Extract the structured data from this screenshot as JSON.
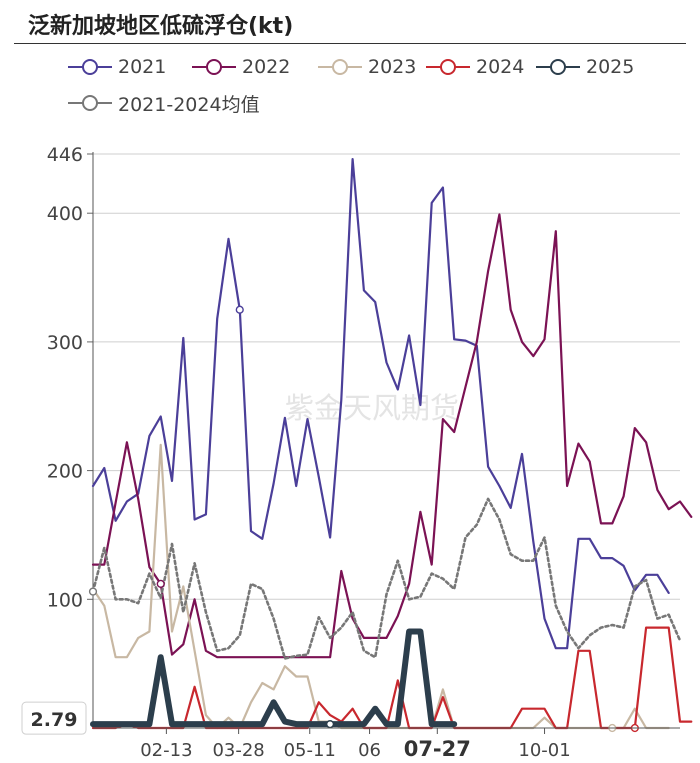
{
  "title": "泛新加坡地区低硫浮仓(kt)",
  "watermark": "紫金天风期货",
  "chart_data": {
    "type": "line",
    "title": "泛新加坡地区低硫浮仓(kt)",
    "ylim": [
      0,
      446
    ],
    "y_ticks": [
      100,
      200,
      300,
      400,
      446
    ],
    "x_range": [
      0,
      52
    ],
    "x_ticks": [
      {
        "label": "02-13",
        "x": 6.5
      },
      {
        "label": "03-28",
        "x": 12.9
      },
      {
        "label": "05-11",
        "x": 19.2
      },
      {
        "label": "06",
        "x": 24.5
      },
      {
        "label": "07-27",
        "x": 30.5
      },
      {
        "label": "10-01",
        "x": 40.0
      }
    ],
    "highlight_tick": "07-27",
    "current_value_label": "2.79",
    "series": [
      {
        "name": "2021",
        "color": "#4b3f99",
        "width": 2.2,
        "dash": "",
        "marker": 13,
        "values": [
          188,
          202,
          161,
          176,
          182,
          227,
          242,
          192,
          303,
          162,
          166,
          318,
          380,
          325,
          153,
          147,
          190,
          241,
          188,
          240,
          195,
          148,
          255,
          442,
          340,
          331,
          284,
          263,
          305,
          251,
          408,
          420,
          302,
          301,
          297,
          203,
          188,
          171,
          213,
          145,
          85,
          62,
          62,
          147,
          147,
          132,
          132,
          126,
          107,
          119,
          119,
          105
        ]
      },
      {
        "name": "2022",
        "color": "#7b1254",
        "width": 2.2,
        "dash": "",
        "marker": 6,
        "values": [
          127,
          127,
          175,
          222,
          178,
          125,
          112,
          57,
          65,
          100,
          60,
          55,
          55,
          55,
          55,
          55,
          55,
          55,
          55,
          55,
          55,
          55,
          122,
          85,
          70,
          70,
          70,
          87,
          112,
          168,
          127,
          240,
          230,
          265,
          300,
          355,
          399,
          325,
          300,
          289,
          302,
          386,
          188,
          221,
          207,
          159,
          159,
          180,
          233,
          222,
          185,
          170,
          176,
          164
        ]
      },
      {
        "name": "2023",
        "color": "#c8b8a3",
        "width": 2.2,
        "dash": "",
        "marker": 46,
        "values": [
          108,
          95,
          55,
          55,
          70,
          75,
          220,
          75,
          110,
          60,
          10,
          0,
          8,
          0,
          20,
          35,
          30,
          48,
          40,
          40,
          5,
          5,
          0,
          0,
          0,
          0,
          0,
          0,
          0,
          0,
          0,
          30,
          0,
          0,
          0,
          0,
          0,
          0,
          0,
          0,
          8,
          0,
          0,
          0,
          0,
          0,
          0,
          0,
          15,
          0,
          0,
          0
        ]
      },
      {
        "name": "2024",
        "color": "#c8282e",
        "width": 2.2,
        "dash": "",
        "marker": 48,
        "values": [
          0,
          0,
          0,
          3,
          0,
          0,
          0,
          0,
          0,
          32,
          0,
          0,
          0,
          0,
          0,
          0,
          0,
          0,
          0,
          0,
          20,
          10,
          5,
          15,
          0,
          0,
          0,
          37,
          0,
          0,
          0,
          24,
          0,
          0,
          0,
          0,
          0,
          0,
          15,
          15,
          15,
          0,
          0,
          60,
          60,
          0,
          0,
          0,
          0,
          78,
          78,
          78,
          5,
          5
        ]
      },
      {
        "name": "2025",
        "color": "#2c3e4c",
        "width": 6,
        "dash": "",
        "marker": 21,
        "values": [
          3,
          3,
          3,
          3,
          3,
          3,
          55,
          3,
          3,
          3,
          3,
          3,
          3,
          3,
          3,
          3,
          20,
          5,
          3,
          3,
          3,
          3,
          3,
          3,
          3,
          15,
          3,
          3,
          75,
          75,
          3,
          3,
          3
        ]
      },
      {
        "name": "2021-2024均值",
        "color": "#777777",
        "width": 2.6,
        "dash": "3,3",
        "marker": 0,
        "values": [
          106,
          140,
          100,
          100,
          97,
          120,
          101,
          143,
          90,
          128,
          90,
          60,
          62,
          72,
          112,
          108,
          85,
          54,
          56,
          57,
          86,
          70,
          78,
          90,
          60,
          55,
          104,
          130,
          100,
          102,
          120,
          116,
          108,
          148,
          158,
          178,
          162,
          135,
          130,
          130,
          148,
          95,
          75,
          62,
          72,
          78,
          80,
          78,
          110,
          115,
          85,
          88,
          68
        ]
      }
    ]
  }
}
